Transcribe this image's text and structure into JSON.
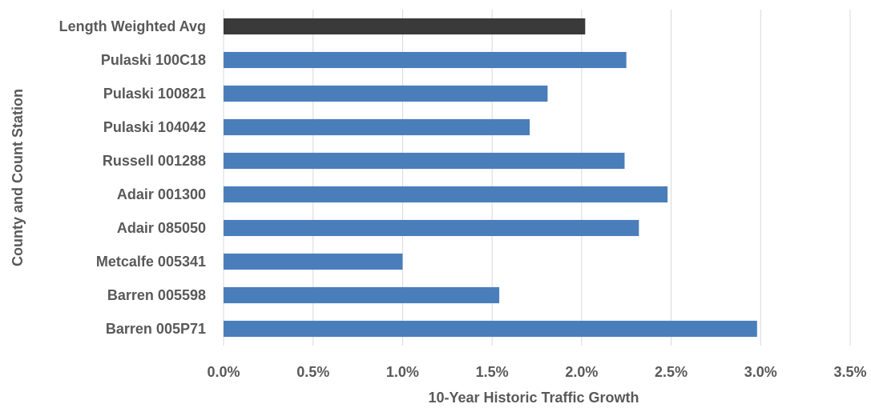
{
  "chart_data": {
    "type": "bar",
    "orientation": "horizontal",
    "title": "",
    "xlabel": "10-Year Historic Traffic Growth",
    "ylabel": "County and Count Station",
    "categories": [
      "Length Weighted Avg",
      "Pulaski 100C18",
      "Pulaski 100821",
      "Pulaski 104042",
      "Russell 001288",
      "Adair 001300",
      "Adair 085050",
      "Metcalfe 005341",
      "Barren 005598",
      "Barren 005P71"
    ],
    "values": [
      2.02,
      2.25,
      1.81,
      1.71,
      2.24,
      2.48,
      2.32,
      1.0,
      1.54,
      2.98
    ],
    "xlim": [
      0,
      3.5
    ],
    "xticks": [
      "0.0%",
      "0.5%",
      "1.0%",
      "1.5%",
      "2.0%",
      "2.5%",
      "3.0%",
      "3.5%"
    ],
    "grid": "vertical",
    "legend": "none",
    "colors": {
      "bar": "#4a7ebb",
      "highlight_bar": "#3a3a3a",
      "text": "#595959",
      "grid": "#d9d9d9"
    },
    "highlight_category": "Length Weighted Avg"
  }
}
